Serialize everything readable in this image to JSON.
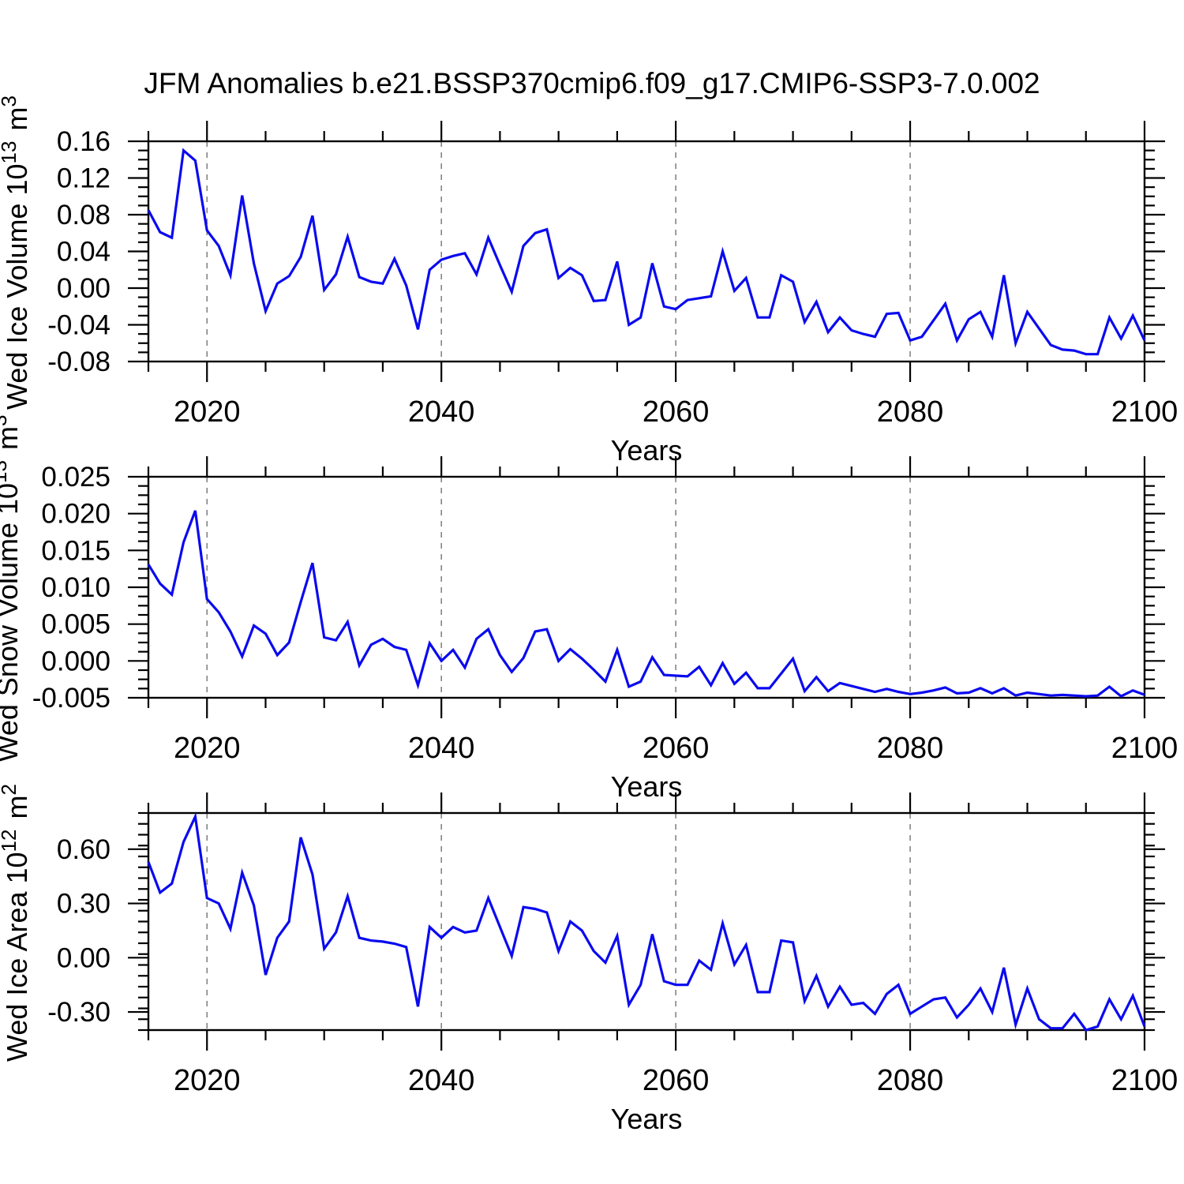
{
  "chart_data": {
    "type": "line",
    "title": "JFM Anomalies b.e21.BSSP370cmip6.f09_g17.CMIP6-SSP3-7.0.002",
    "xlabel": "Years",
    "line_color": "#0a0af0",
    "gridline_color": "#7d7d7d",
    "xlim": [
      2015,
      2100
    ],
    "xticks": [
      2020,
      2040,
      2060,
      2080,
      2100
    ],
    "xtick_labels": [
      "2020",
      "2040",
      "2060",
      "2080",
      "2100"
    ],
    "x_minor_step": 5,
    "grid_years": [
      2020,
      2040,
      2060,
      2080
    ],
    "legend": "none",
    "grid": "vertical-dashed",
    "x": [
      2015,
      2016,
      2017,
      2018,
      2019,
      2020,
      2021,
      2022,
      2023,
      2024,
      2025,
      2026,
      2027,
      2028,
      2029,
      2030,
      2031,
      2032,
      2033,
      2034,
      2035,
      2036,
      2037,
      2038,
      2039,
      2040,
      2041,
      2042,
      2043,
      2044,
      2045,
      2046,
      2047,
      2048,
      2049,
      2050,
      2051,
      2052,
      2053,
      2054,
      2055,
      2056,
      2057,
      2058,
      2059,
      2060,
      2061,
      2062,
      2063,
      2064,
      2065,
      2066,
      2067,
      2068,
      2069,
      2070,
      2071,
      2072,
      2073,
      2074,
      2075,
      2076,
      2077,
      2078,
      2079,
      2080,
      2081,
      2082,
      2083,
      2084,
      2085,
      2086,
      2087,
      2088,
      2089,
      2090,
      2091,
      2092,
      2093,
      2094,
      2095,
      2096,
      2097,
      2098,
      2099,
      2100
    ],
    "panels": [
      {
        "name": "ice-volume",
        "ylabel": "Wed Ice Volume 10^13 m^3",
        "ylabel_parts": [
          {
            "t": "Wed Ice Volume 10"
          },
          {
            "t": "13",
            "sup": true
          },
          {
            "t": " m"
          },
          {
            "t": "3",
            "sup": true
          }
        ],
        "ylim": [
          -0.08,
          0.16
        ],
        "yticks": [
          0.16,
          0.12,
          0.08,
          0.04,
          0.0,
          -0.04,
          -0.08
        ],
        "ytick_labels": [
          "0.16",
          "0.12",
          "0.08",
          "0.04",
          "0.00",
          "-0.04",
          "-0.08"
        ],
        "y_minor_step": 0.01,
        "values": [
          0.085,
          0.061,
          0.055,
          0.15,
          0.139,
          0.063,
          0.046,
          0.014,
          0.101,
          0.027,
          -0.025,
          0.005,
          0.013,
          0.034,
          0.079,
          -0.002,
          0.015,
          0.056,
          0.012,
          0.007,
          0.005,
          0.032,
          0.003,
          -0.045,
          0.02,
          0.031,
          0.035,
          0.038,
          0.015,
          0.055,
          0.025,
          -0.004,
          0.046,
          0.06,
          0.064,
          0.011,
          0.022,
          0.014,
          -0.014,
          -0.013,
          0.029,
          -0.04,
          -0.032,
          0.027,
          -0.02,
          -0.023,
          -0.013,
          -0.011,
          -0.009,
          0.04,
          -0.003,
          0.011,
          -0.032,
          -0.032,
          0.014,
          0.007,
          -0.037,
          -0.015,
          -0.048,
          -0.032,
          -0.046,
          -0.05,
          -0.053,
          -0.028,
          -0.027,
          -0.057,
          -0.053,
          -0.035,
          -0.017,
          -0.057,
          -0.034,
          -0.026,
          -0.053,
          0.014,
          -0.06,
          -0.026,
          -0.044,
          -0.062,
          -0.067,
          -0.068,
          -0.072,
          -0.072,
          -0.032,
          -0.055,
          -0.03,
          -0.057
        ]
      },
      {
        "name": "snow-volume",
        "ylabel": "Wed Snow Volume 10^13 m^3",
        "ylabel_parts": [
          {
            "t": "Wed Snow Volume 10"
          },
          {
            "t": "13",
            "sup": true
          },
          {
            "t": " m"
          },
          {
            "t": "3",
            "sup": true
          }
        ],
        "ylim": [
          -0.005,
          0.025
        ],
        "yticks": [
          0.025,
          0.02,
          0.015,
          0.01,
          0.005,
          0.0,
          -0.005
        ],
        "ytick_labels": [
          "0.025",
          "0.020",
          "0.015",
          "0.010",
          "0.005",
          "0.000",
          "-0.005"
        ],
        "y_minor_step": 0.00125,
        "values": [
          0.0131,
          0.0105,
          0.009,
          0.0161,
          0.0204,
          0.0084,
          0.0066,
          0.004,
          0.0006,
          0.0048,
          0.0037,
          0.0008,
          0.0025,
          0.008,
          0.0133,
          0.0032,
          0.0028,
          0.0053,
          -0.0006,
          0.0022,
          0.003,
          0.0019,
          0.0015,
          -0.0033,
          0.0024,
          0.0,
          0.0015,
          -0.0009,
          0.003,
          0.0043,
          0.0008,
          -0.0015,
          0.0004,
          0.004,
          0.0043,
          0.0,
          0.0016,
          0.0003,
          -0.0012,
          -0.0028,
          0.0015,
          -0.0035,
          -0.0028,
          0.0005,
          -0.0019,
          -0.002,
          -0.0021,
          -0.0008,
          -0.0033,
          -0.0003,
          -0.0031,
          -0.0016,
          -0.0037,
          -0.0037,
          -0.0017,
          0.0003,
          -0.0041,
          -0.0022,
          -0.0041,
          -0.003,
          -0.0034,
          -0.0038,
          -0.0042,
          -0.0038,
          -0.0042,
          -0.0045,
          -0.0043,
          -0.004,
          -0.0036,
          -0.0044,
          -0.0043,
          -0.0037,
          -0.0044,
          -0.0037,
          -0.0047,
          -0.0043,
          -0.0045,
          -0.0047,
          -0.0046,
          -0.0047,
          -0.0048,
          -0.0047,
          -0.0035,
          -0.0048,
          -0.004,
          -0.0046
        ]
      },
      {
        "name": "ice-area",
        "ylabel": "Wed Ice Area 10^12 m^2",
        "ylabel_parts": [
          {
            "t": "Wed Ice Area 10"
          },
          {
            "t": "12",
            "sup": true
          },
          {
            "t": " m"
          },
          {
            "t": "2",
            "sup": true
          }
        ],
        "ylim": [
          -0.4,
          0.8
        ],
        "yticks": [
          0.6,
          0.3,
          0.0,
          -0.3
        ],
        "ytick_labels": [
          "0.60",
          "0.30",
          "0.00",
          "-0.30"
        ],
        "y_minor_step": 0.06,
        "values": [
          0.53,
          0.36,
          0.41,
          0.64,
          0.78,
          0.33,
          0.3,
          0.16,
          0.47,
          0.29,
          -0.095,
          0.11,
          0.2,
          0.665,
          0.46,
          0.05,
          0.14,
          0.34,
          0.11,
          0.095,
          0.089,
          0.078,
          0.059,
          -0.27,
          0.17,
          0.11,
          0.17,
          0.14,
          0.15,
          0.33,
          0.17,
          0.01,
          0.28,
          0.27,
          0.25,
          0.037,
          0.2,
          0.15,
          0.037,
          -0.027,
          0.12,
          -0.26,
          -0.15,
          0.13,
          -0.13,
          -0.15,
          -0.15,
          -0.016,
          -0.066,
          0.19,
          -0.037,
          0.071,
          -0.19,
          -0.19,
          0.095,
          0.085,
          -0.24,
          -0.1,
          -0.27,
          -0.16,
          -0.26,
          -0.25,
          -0.31,
          -0.2,
          -0.15,
          -0.31,
          -0.27,
          -0.23,
          -0.22,
          -0.33,
          -0.26,
          -0.17,
          -0.3,
          -0.055,
          -0.37,
          -0.17,
          -0.34,
          -0.39,
          -0.39,
          -0.31,
          -0.4,
          -0.38,
          -0.23,
          -0.34,
          -0.21,
          -0.38
        ]
      }
    ]
  }
}
